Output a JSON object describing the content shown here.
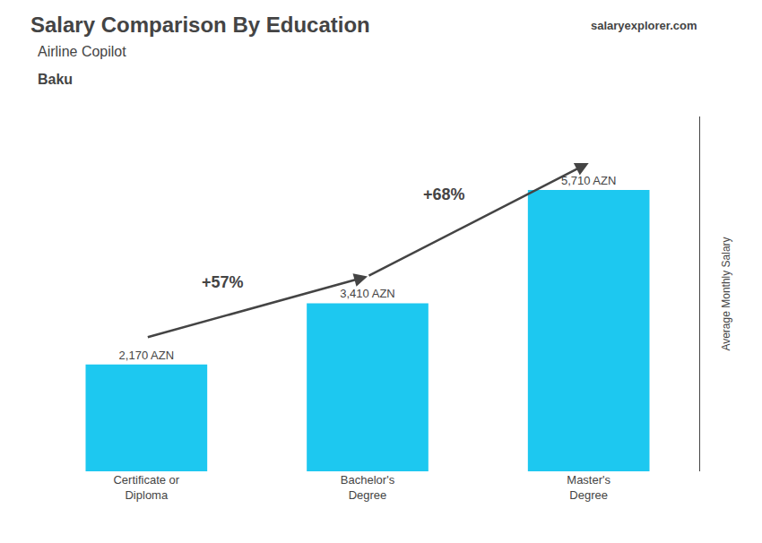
{
  "chart_data": {
    "type": "bar",
    "title": "Salary Comparison By Education",
    "subtitle": "Airline Copilot",
    "location": "Baku",
    "source": "salaryexplorer.com",
    "categories": [
      "Certificate or\nDiploma",
      "Bachelor's\nDegree",
      "Master's\nDegree"
    ],
    "values": [
      2170,
      3410,
      5710
    ],
    "value_labels": [
      "2,170 AZN",
      "3,410 AZN",
      "5,710 AZN"
    ],
    "data_labels": true,
    "annotations": [
      "+57%",
      "+68%"
    ],
    "color": "#1DC8F0",
    "ylabel": "Average Monthly Salary",
    "ylim": [
      0,
      7200
    ],
    "tick_labels": "x",
    "grid": false
  }
}
